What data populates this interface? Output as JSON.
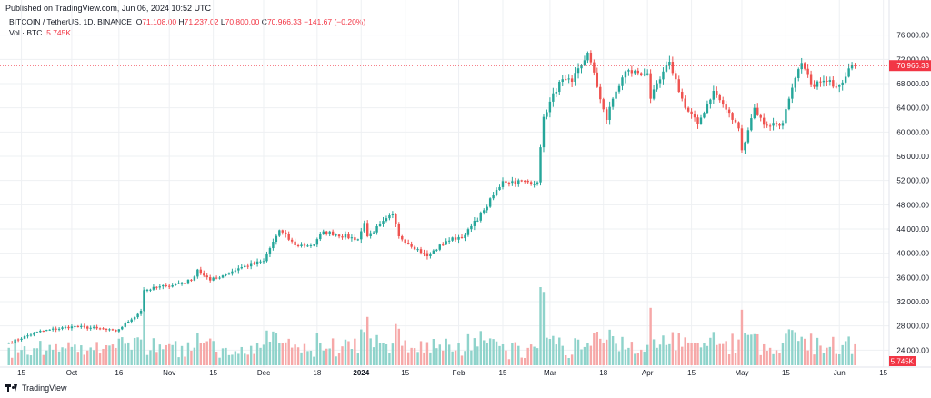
{
  "published": "Published on TradingView.com, Jun 06, 2024 10:52 UTC",
  "legend": {
    "symbol": "BITCOIN / TetherUS, 1D, BINANCE",
    "open_label": "O",
    "open": "71,108.00",
    "high_label": "H",
    "high": "71,237.02",
    "low_label": "L",
    "low": "70,800.00",
    "close_label": "C",
    "close": "70,966.33",
    "change": "−141.67 (−0.20%)",
    "volume_label": "Vol · BTC",
    "volume": "5.745K"
  },
  "footer": {
    "brand": "TradingView",
    "logo_icon": "tradingview-logo-icon"
  },
  "colors": {
    "up": "#26a69a",
    "down": "#ef5350",
    "vol_up": "#8fd3cb",
    "vol_down": "#f6a8a8",
    "grid": "#eef0f3",
    "price_line": "#f23645"
  },
  "chart_data": {
    "type": "candlestick",
    "title": "BITCOIN / TetherUS, 1D, BINANCE",
    "ylim": [
      21500,
      78500
    ],
    "yticks": [
      24000,
      28000,
      32000,
      36000,
      40000,
      44000,
      48000,
      52000,
      56000,
      60000,
      64000,
      68000,
      72000,
      76000
    ],
    "ytick_labels": [
      "24,000.00",
      "28,000.00",
      "32,000.00",
      "36,000.00",
      "40,000.00",
      "44,000.00",
      "48,000.00",
      "52,000.00",
      "56,000.00",
      "60,000.00",
      "64,000.00",
      "68,000.00",
      "72,000.00",
      "76,000.00"
    ],
    "last_price": 70966.33,
    "last_price_label": "70,966.33",
    "last_volume_label": "5.745K",
    "grid": true,
    "xticks": [
      {
        "date": "2023-09-15",
        "label": "15"
      },
      {
        "date": "2023-10-01",
        "label": "Oct"
      },
      {
        "date": "2023-10-16",
        "label": "16"
      },
      {
        "date": "2023-11-01",
        "label": "Nov"
      },
      {
        "date": "2023-11-15",
        "label": "15"
      },
      {
        "date": "2023-12-01",
        "label": "Dec"
      },
      {
        "date": "2023-12-18",
        "label": "18"
      },
      {
        "date": "2024-01-01",
        "label": "2024",
        "bold": true
      },
      {
        "date": "2024-01-15",
        "label": "15"
      },
      {
        "date": "2024-02-01",
        "label": "Feb"
      },
      {
        "date": "2024-02-15",
        "label": "15"
      },
      {
        "date": "2024-03-01",
        "label": "Mar"
      },
      {
        "date": "2024-03-18",
        "label": "18"
      },
      {
        "date": "2024-04-01",
        "label": "Apr"
      },
      {
        "date": "2024-04-15",
        "label": "15"
      },
      {
        "date": "2024-05-01",
        "label": "May"
      },
      {
        "date": "2024-05-15",
        "label": "15"
      },
      {
        "date": "2024-06-01",
        "label": "Jun"
      },
      {
        "date": "2024-06-15",
        "label": "15"
      }
    ],
    "x_start": "2023-09-11",
    "x_end": "2024-06-06",
    "close_keypoints": [
      [
        "2023-09-11",
        25200
      ],
      [
        "2023-09-20",
        27000
      ],
      [
        "2023-10-01",
        27900
      ],
      [
        "2023-10-09",
        27600
      ],
      [
        "2023-10-15",
        27100
      ],
      [
        "2023-10-19",
        28700
      ],
      [
        "2023-10-23",
        30500
      ],
      [
        "2023-10-24",
        33900
      ],
      [
        "2023-10-31",
        34600
      ],
      [
        "2023-11-08",
        35500
      ],
      [
        "2023-11-10",
        37300
      ],
      [
        "2023-11-14",
        35500
      ],
      [
        "2023-11-24",
        37700
      ],
      [
        "2023-12-01",
        38700
      ],
      [
        "2023-12-04",
        41900
      ],
      [
        "2023-12-06",
        43800
      ],
      [
        "2023-12-11",
        41300
      ],
      [
        "2023-12-17",
        41400
      ],
      [
        "2023-12-20",
        43600
      ],
      [
        "2023-12-31",
        42300
      ],
      [
        "2024-01-02",
        45000
      ],
      [
        "2024-01-03",
        42800
      ],
      [
        "2024-01-11",
        46400
      ],
      [
        "2024-01-13",
        42800
      ],
      [
        "2024-01-22",
        39500
      ],
      [
        "2024-01-28",
        42000
      ],
      [
        "2024-02-03",
        43000
      ],
      [
        "2024-02-09",
        47100
      ],
      [
        "2024-02-15",
        51900
      ],
      [
        "2024-02-26",
        51700
      ],
      [
        "2024-02-28",
        62500
      ],
      [
        "2024-03-04",
        68300
      ],
      [
        "2024-03-08",
        68300
      ],
      [
        "2024-03-13",
        73100
      ],
      [
        "2024-03-19",
        62000
      ],
      [
        "2024-03-21",
        65500
      ],
      [
        "2024-03-25",
        70000
      ],
      [
        "2024-04-01",
        69700
      ],
      [
        "2024-04-02",
        65500
      ],
      [
        "2024-04-08",
        71600
      ],
      [
        "2024-04-13",
        64000
      ],
      [
        "2024-04-17",
        61300
      ],
      [
        "2024-04-22",
        66800
      ],
      [
        "2024-04-30",
        60600
      ],
      [
        "2024-05-01",
        57000
      ],
      [
        "2024-05-05",
        64000
      ],
      [
        "2024-05-08",
        61200
      ],
      [
        "2024-05-14",
        61500
      ],
      [
        "2024-05-16",
        65500
      ],
      [
        "2024-05-20",
        71400
      ],
      [
        "2024-05-23",
        67900
      ],
      [
        "2024-05-28",
        68300
      ],
      [
        "2024-06-01",
        67700
      ],
      [
        "2024-06-04",
        70500
      ],
      [
        "2024-06-05",
        71100
      ],
      [
        "2024-06-06",
        70966
      ]
    ]
  }
}
